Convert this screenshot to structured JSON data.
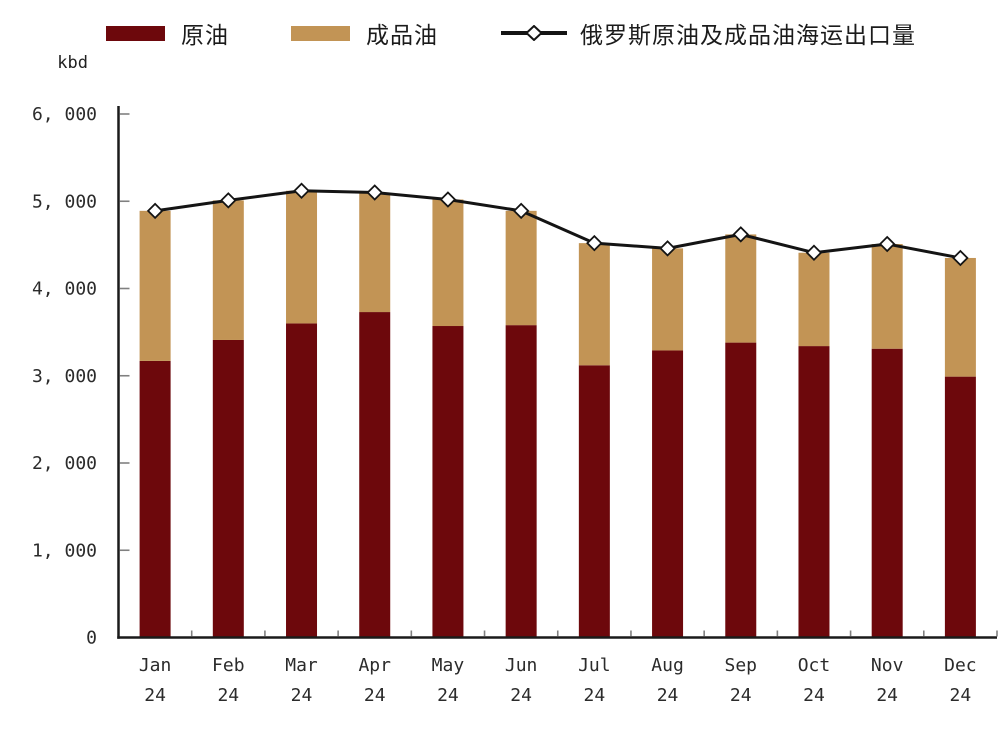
{
  "axis_unit_label": "kbd",
  "colors": {
    "background": "#ffffff",
    "axis_line": "#1a1a1a",
    "axis_tick": "#808080",
    "tick_label": "#2b2b2b",
    "crude_bar": "#6d080c",
    "products_bar": "#c29455",
    "total_line": "#141414",
    "marker_fill": "#ffffff"
  },
  "legend": {
    "items": [
      {
        "label": "原油"
      },
      {
        "label": "成品油"
      },
      {
        "label": "俄罗斯原油及成品油海运出口量"
      }
    ]
  },
  "chart_data": {
    "type": "bar",
    "subtype": "stacked-bars-with-line-overlay",
    "title": "",
    "xlabel": "",
    "ylabel": "kbd",
    "ylim": [
      0,
      6000
    ],
    "ytick_interval": 1000,
    "yticklabels": [
      "0",
      "1, 000",
      "2, 000",
      "3, 000",
      "4, 000",
      "5, 000",
      "6, 000"
    ],
    "grid": false,
    "legend_position": "top",
    "tick_style": "inside-gray",
    "categories": [
      "Jan",
      "Feb",
      "Mar",
      "Apr",
      "May",
      "Jun",
      "Jul",
      "Aug",
      "Sep",
      "Oct",
      "Nov",
      "Dec"
    ],
    "category_year": "24",
    "series": [
      {
        "name": "原油",
        "type": "bar",
        "stack": "total",
        "color": "#6d080c",
        "values": [
          3170,
          3410,
          3600,
          3730,
          3570,
          3580,
          3120,
          3290,
          3380,
          3340,
          3310,
          2990
        ]
      },
      {
        "name": "成品油",
        "type": "bar",
        "stack": "total",
        "color": "#c29455",
        "values": [
          1720,
          1600,
          1520,
          1370,
          1450,
          1310,
          1400,
          1170,
          1240,
          1070,
          1200,
          1360
        ]
      },
      {
        "name": "俄罗斯原油及成品油海运出口量",
        "type": "line",
        "color": "#141414",
        "marker": "diamond",
        "marker_fill": "#ffffff",
        "values": [
          4890,
          5010,
          5120,
          5100,
          5020,
          4890,
          4520,
          4460,
          4620,
          4410,
          4510,
          4350
        ]
      }
    ]
  }
}
